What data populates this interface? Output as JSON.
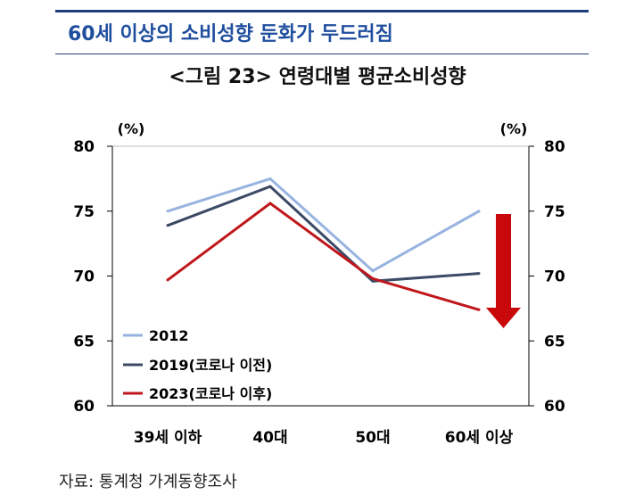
{
  "header": {
    "headline": "60세 이상의 소비성향 둔화가 두드러짐",
    "figure_title": "<그림 23> 연령대별 평균소비성향"
  },
  "source": "자료: 통계청 가계동향조사",
  "colors": {
    "headline": "#1f4e9e",
    "rule": "#1f3d7a",
    "series_2012": "#97b3e0",
    "series_2019": "#3c4a66",
    "series_2023": "#c0171c",
    "arrow": "#c8080b"
  },
  "annotation": {
    "arrow_icon": "red-down-arrow-icon"
  },
  "chart_data": {
    "type": "line",
    "categories": [
      "39세 이하",
      "40대",
      "50대",
      "60세 이상"
    ],
    "series": [
      {
        "name": "2012",
        "values": [
          75.0,
          77.5,
          70.4,
          75.0
        ]
      },
      {
        "name": "2019(코로나 이전)",
        "values": [
          73.9,
          76.9,
          69.6,
          70.2
        ]
      },
      {
        "name": "2023(코로나 이후)",
        "values": [
          69.7,
          75.6,
          69.8,
          67.4
        ]
      }
    ],
    "ylim": [
      60,
      80
    ],
    "yticks": [
      "60",
      "65",
      "70",
      "75",
      "80"
    ],
    "ylabel_left": "(%)",
    "ylabel_right": "(%)",
    "grid": false,
    "legend_position": "bottom-left"
  }
}
